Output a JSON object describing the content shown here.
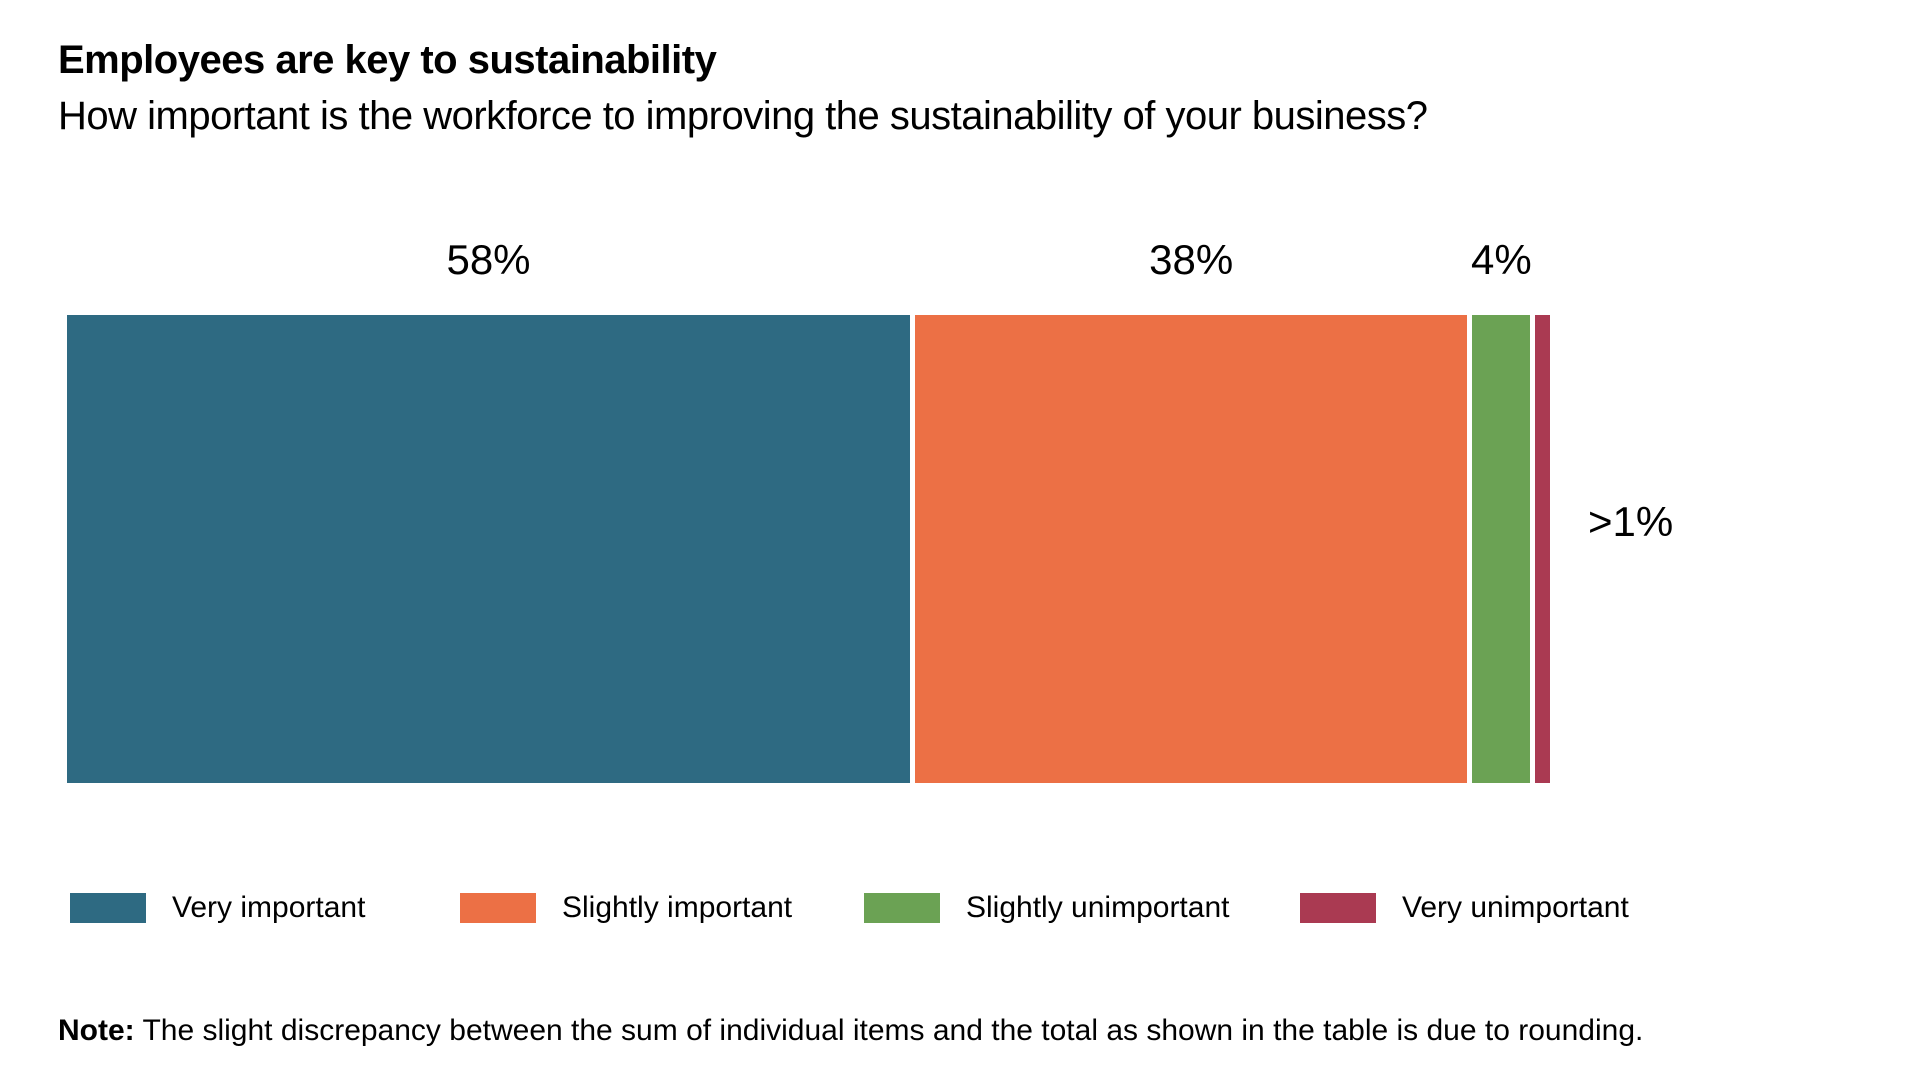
{
  "header": {
    "title": "Employees are key to sustainability",
    "subtitle": "How important is the workforce to improving the sustainability of your business?"
  },
  "chart_data": {
    "type": "bar",
    "variant": "horizontal-stacked-single-bar",
    "title": "Employees are key to sustainability",
    "subtitle": "How important is the workforce to improving the sustainability of your business?",
    "categories": [
      "Very important",
      "Slightly important",
      "Slightly unimportant",
      "Very unimportant"
    ],
    "values": [
      58,
      38,
      4,
      1
    ],
    "value_labels": [
      "58%",
      "38%",
      "4%",
      ">1%"
    ],
    "label_placement": [
      "above",
      "above",
      "above",
      "right"
    ],
    "colors": [
      "#2e6a82",
      "#ec7045",
      "#6ba254",
      "#aa3a52"
    ],
    "xlabel": "",
    "ylabel": "",
    "xlim": [
      0,
      100
    ],
    "grid": false,
    "legend_position": "bottom"
  },
  "legend": {
    "items": [
      {
        "label": "Very important",
        "color": "#2e6a82"
      },
      {
        "label": "Slightly important",
        "color": "#ec7045"
      },
      {
        "label": "Slightly unimportant",
        "color": "#6ba254"
      },
      {
        "label": "Very unimportant",
        "color": "#aa3a52"
      }
    ]
  },
  "note": {
    "label": "Note:",
    "text": " The slight discrepancy between the sum of individual items and the total as shown in the table is due to rounding."
  }
}
